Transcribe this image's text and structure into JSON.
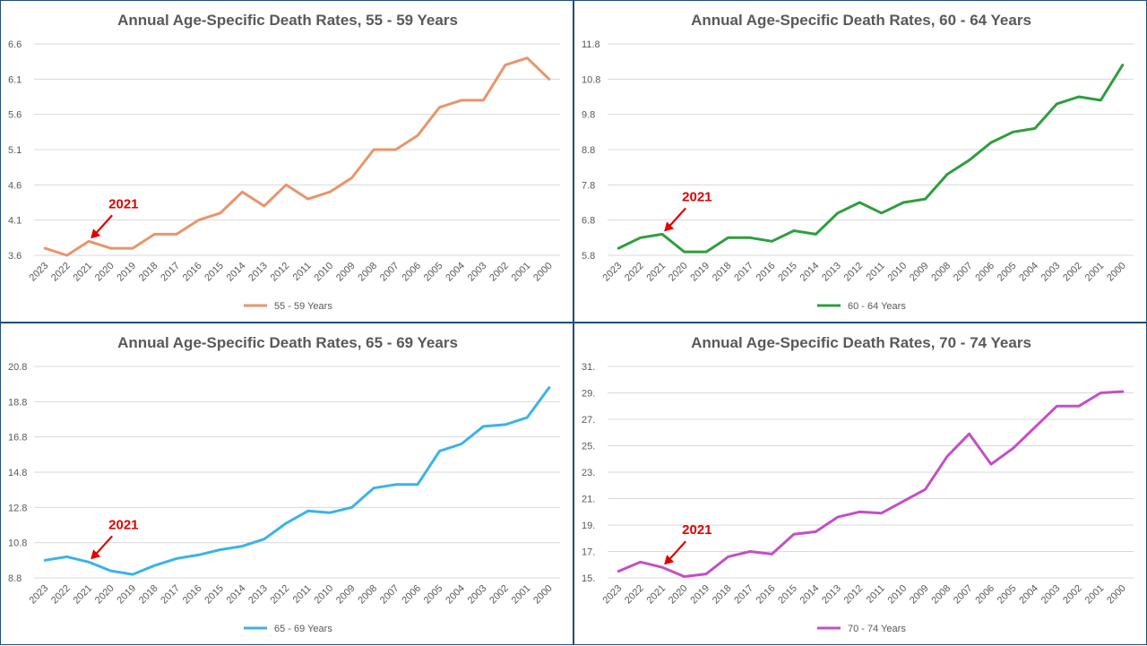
{
  "chart_data": [
    {
      "type": "line",
      "title": "Annual Age-Specific Death Rates, 55 - 59 Years",
      "categories": [
        "2023",
        "2022",
        "2021",
        "2020",
        "2019",
        "2018",
        "2017",
        "2016",
        "2015",
        "2014",
        "2013",
        "2012",
        "2011",
        "2010",
        "2009",
        "2008",
        "2007",
        "2006",
        "2005",
        "2004",
        "2003",
        "2002",
        "2001",
        "2000"
      ],
      "yticks": [
        "3.6",
        "4.1",
        "4.6",
        "5.1",
        "5.6",
        "6.1",
        "6.6"
      ],
      "ylim": [
        3.6,
        6.6
      ],
      "series": [
        {
          "name": "55 - 59 Years",
          "color": "#e8956b",
          "values": [
            3.7,
            3.6,
            3.8,
            3.7,
            3.7,
            3.9,
            3.9,
            4.1,
            4.2,
            4.5,
            4.3,
            4.6,
            4.4,
            4.5,
            4.7,
            5.1,
            5.1,
            5.3,
            5.7,
            5.8,
            5.8,
            6.3,
            6.4,
            6.1
          ]
        }
      ],
      "annotation": {
        "label": "2021",
        "category": "2021"
      },
      "legend": "bottom"
    },
    {
      "type": "line",
      "title": "Annual Age-Specific Death Rates, 60 - 64 Years",
      "categories": [
        "2023",
        "2022",
        "2021",
        "2020",
        "2019",
        "2018",
        "2017",
        "2016",
        "2015",
        "2014",
        "2013",
        "2012",
        "2011",
        "2010",
        "2009",
        "2008",
        "2007",
        "2006",
        "2005",
        "2004",
        "2003",
        "2002",
        "2001",
        "2000"
      ],
      "yticks": [
        "5.8",
        "6.8",
        "7.8",
        "8.8",
        "9.8",
        "10.8",
        "11.8"
      ],
      "ylim": [
        5.8,
        11.8
      ],
      "series": [
        {
          "name": "60 - 64 Years",
          "color": "#2e9e3e",
          "values": [
            6.0,
            6.3,
            6.4,
            5.9,
            5.9,
            6.3,
            6.3,
            6.2,
            6.5,
            6.4,
            7.0,
            7.3,
            7.0,
            7.3,
            7.4,
            8.1,
            8.5,
            9.0,
            9.3,
            9.4,
            10.1,
            10.3,
            10.2,
            11.2
          ]
        }
      ],
      "annotation": {
        "label": "2021",
        "category": "2021"
      },
      "legend": "bottom"
    },
    {
      "type": "line",
      "title": "Annual Age-Specific Death Rates, 65 - 69 Years",
      "categories": [
        "2023",
        "2022",
        "2021",
        "2020",
        "2019",
        "2018",
        "2017",
        "2016",
        "2015",
        "2014",
        "2013",
        "2012",
        "2011",
        "2010",
        "2009",
        "2008",
        "2007",
        "2006",
        "2005",
        "2004",
        "2003",
        "2002",
        "2001",
        "2000"
      ],
      "yticks": [
        "8.8",
        "10.8",
        "12.8",
        "14.8",
        "16.8",
        "18.8",
        "20.8"
      ],
      "ylim": [
        8.8,
        20.8
      ],
      "series": [
        {
          "name": "65 - 69 Years",
          "color": "#3bb3e8",
          "values": [
            9.8,
            10.0,
            9.7,
            9.2,
            9.0,
            9.5,
            9.9,
            10.1,
            10.4,
            10.6,
            11.0,
            11.9,
            12.6,
            12.5,
            12.8,
            13.9,
            14.1,
            14.1,
            16.0,
            16.4,
            17.4,
            17.5,
            17.9,
            19.6
          ]
        }
      ],
      "annotation": {
        "label": "2021",
        "category": "2021"
      },
      "legend": "bottom"
    },
    {
      "type": "line",
      "title": "Annual Age-Specific Death Rates, 70 - 74 Years",
      "categories": [
        "2023",
        "2022",
        "2021",
        "2020",
        "2019",
        "2018",
        "2017",
        "2016",
        "2015",
        "2014",
        "2013",
        "2012",
        "2011",
        "2010",
        "2009",
        "2008",
        "2007",
        "2006",
        "2005",
        "2004",
        "2003",
        "2002",
        "2001",
        "2000"
      ],
      "yticks": [
        "15.",
        "17.",
        "19.",
        "21.",
        "23.",
        "25.",
        "27.",
        "29.",
        "31."
      ],
      "ylim": [
        15,
        31
      ],
      "series": [
        {
          "name": "70 - 74 Years",
          "color": "#c44fc4",
          "values": [
            15.5,
            16.2,
            15.8,
            15.1,
            15.3,
            16.6,
            17.0,
            16.8,
            18.3,
            18.5,
            19.6,
            20.0,
            19.9,
            20.8,
            21.7,
            24.2,
            25.9,
            23.6,
            24.8,
            26.4,
            28.0,
            28.0,
            29.0,
            29.1
          ]
        }
      ],
      "annotation": {
        "label": "2021",
        "category": "2021"
      },
      "legend": "bottom"
    }
  ]
}
